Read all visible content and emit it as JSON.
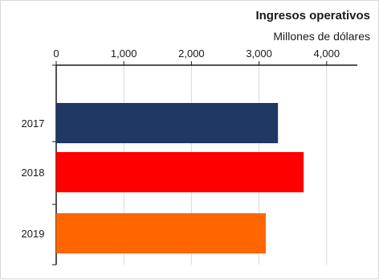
{
  "chart_data": {
    "type": "bar",
    "orientation": "horizontal",
    "title": "Ingresos operativos",
    "subtitle": "Millones de dólares",
    "categories": [
      "2017",
      "2018",
      "2019"
    ],
    "values": [
      3280,
      3660,
      3100
    ],
    "colors": [
      "#1f3864",
      "#ff0000",
      "#ff6600"
    ],
    "xlim": [
      0,
      4500
    ],
    "xticks": [
      0,
      1000,
      2000,
      3000,
      4000
    ],
    "xtick_labels": [
      "0",
      "1,000",
      "2,000",
      "3,000",
      "4,000"
    ],
    "xaxis_position": "top",
    "grid": "vertical",
    "gridline_color": "#d9d9d9"
  }
}
